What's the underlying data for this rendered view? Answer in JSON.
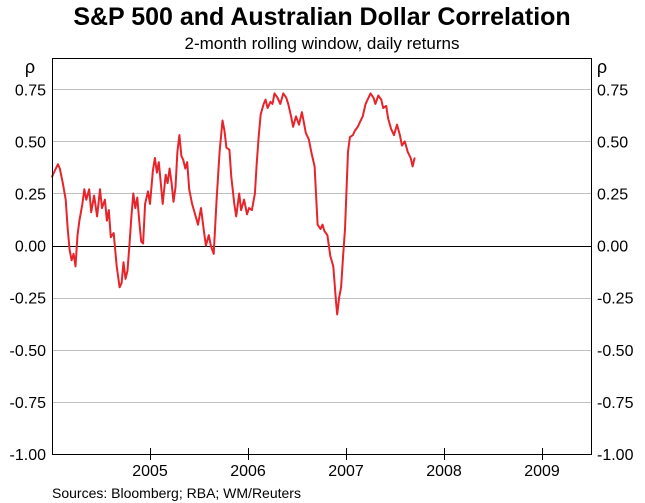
{
  "chart_data": {
    "type": "line",
    "title": "S&P 500 and Australian Dollar Correlation",
    "subtitle": "2-month rolling window, daily returns",
    "left_axis_unit": "ρ",
    "right_axis_unit": "ρ",
    "ylim": [
      -1.0,
      0.9
    ],
    "yticks": [
      0.75,
      0.5,
      0.25,
      0.0,
      -0.25,
      -0.5,
      -0.75,
      -1.0
    ],
    "ytick_labels": [
      "0.75",
      "0.50",
      "0.25",
      "0.00",
      "-0.25",
      "-0.50",
      "-0.75",
      "-1.00"
    ],
    "xlim": [
      2004.5,
      2010.0
    ],
    "x_categories": [
      "2005",
      "2006",
      "2007",
      "2008",
      "2009"
    ],
    "year_boundaries": [
      2005,
      2006,
      2007,
      2008,
      2009
    ],
    "zero_line": true,
    "grid": "horizontal",
    "line_color": "#e8242b",
    "source": "Sources: Bloomberg; RBA; WM/Reuters",
    "series": [
      {
        "values": [
          [
            2004.5,
            0.33
          ],
          [
            2004.53,
            0.36
          ],
          [
            2004.56,
            0.39
          ],
          [
            2004.58,
            0.37
          ],
          [
            2004.61,
            0.3
          ],
          [
            2004.64,
            0.22
          ],
          [
            2004.66,
            0.08
          ],
          [
            2004.68,
            -0.02
          ],
          [
            2004.7,
            -0.07
          ],
          [
            2004.72,
            -0.04
          ],
          [
            2004.74,
            -0.1
          ],
          [
            2004.76,
            0.05
          ],
          [
            2004.78,
            0.12
          ],
          [
            2004.81,
            0.2
          ],
          [
            2004.83,
            0.27
          ],
          [
            2004.85,
            0.22
          ],
          [
            2004.88,
            0.27
          ],
          [
            2004.9,
            0.16
          ],
          [
            2004.93,
            0.24
          ],
          [
            2004.96,
            0.14
          ],
          [
            2004.99,
            0.27
          ],
          [
            2005.01,
            0.18
          ],
          [
            2005.04,
            0.22
          ],
          [
            2005.06,
            0.12
          ],
          [
            2005.08,
            0.17
          ],
          [
            2005.1,
            0.04
          ],
          [
            2005.13,
            0.06
          ],
          [
            2005.16,
            -0.1
          ],
          [
            2005.19,
            -0.2
          ],
          [
            2005.21,
            -0.18
          ],
          [
            2005.23,
            -0.08
          ],
          [
            2005.25,
            -0.16
          ],
          [
            2005.27,
            -0.12
          ],
          [
            2005.29,
            0.0
          ],
          [
            2005.31,
            0.14
          ],
          [
            2005.33,
            0.25
          ],
          [
            2005.35,
            0.18
          ],
          [
            2005.37,
            0.23
          ],
          [
            2005.39,
            0.12
          ],
          [
            2005.41,
            0.02
          ],
          [
            2005.43,
            0.01
          ],
          [
            2005.45,
            0.2
          ],
          [
            2005.48,
            0.26
          ],
          [
            2005.5,
            0.2
          ],
          [
            2005.53,
            0.36
          ],
          [
            2005.55,
            0.42
          ],
          [
            2005.57,
            0.35
          ],
          [
            2005.59,
            0.4
          ],
          [
            2005.61,
            0.3
          ],
          [
            2005.63,
            0.2
          ],
          [
            2005.66,
            0.34
          ],
          [
            2005.68,
            0.3
          ],
          [
            2005.7,
            0.37
          ],
          [
            2005.72,
            0.3
          ],
          [
            2005.74,
            0.21
          ],
          [
            2005.76,
            0.28
          ],
          [
            2005.78,
            0.45
          ],
          [
            2005.8,
            0.53
          ],
          [
            2005.82,
            0.43
          ],
          [
            2005.84,
            0.41
          ],
          [
            2005.86,
            0.37
          ],
          [
            2005.88,
            0.4
          ],
          [
            2005.9,
            0.27
          ],
          [
            2005.93,
            0.2
          ],
          [
            2005.96,
            0.15
          ],
          [
            2005.99,
            0.1
          ],
          [
            2006.02,
            0.18
          ],
          [
            2006.05,
            0.07
          ],
          [
            2006.07,
            0.0
          ],
          [
            2006.1,
            0.05
          ],
          [
            2006.12,
            0.0
          ],
          [
            2006.15,
            -0.04
          ],
          [
            2006.18,
            0.22
          ],
          [
            2006.21,
            0.45
          ],
          [
            2006.24,
            0.6
          ],
          [
            2006.26,
            0.55
          ],
          [
            2006.28,
            0.47
          ],
          [
            2006.31,
            0.46
          ],
          [
            2006.33,
            0.33
          ],
          [
            2006.36,
            0.2
          ],
          [
            2006.38,
            0.14
          ],
          [
            2006.41,
            0.25
          ],
          [
            2006.43,
            0.17
          ],
          [
            2006.46,
            0.22
          ],
          [
            2006.49,
            0.15
          ],
          [
            2006.51,
            0.18
          ],
          [
            2006.54,
            0.17
          ],
          [
            2006.57,
            0.25
          ],
          [
            2006.59,
            0.4
          ],
          [
            2006.61,
            0.53
          ],
          [
            2006.63,
            0.63
          ],
          [
            2006.66,
            0.68
          ],
          [
            2006.68,
            0.7
          ],
          [
            2006.7,
            0.66
          ],
          [
            2006.73,
            0.69
          ],
          [
            2006.75,
            0.68
          ],
          [
            2006.77,
            0.73
          ],
          [
            2006.8,
            0.71
          ],
          [
            2006.83,
            0.68
          ],
          [
            2006.86,
            0.73
          ],
          [
            2006.89,
            0.71
          ],
          [
            2006.91,
            0.68
          ],
          [
            2006.94,
            0.62
          ],
          [
            2006.96,
            0.57
          ],
          [
            2006.99,
            0.62
          ],
          [
            2007.02,
            0.58
          ],
          [
            2007.05,
            0.64
          ],
          [
            2007.07,
            0.59
          ],
          [
            2007.09,
            0.54
          ],
          [
            2007.12,
            0.51
          ],
          [
            2007.15,
            0.44
          ],
          [
            2007.18,
            0.38
          ],
          [
            2007.21,
            0.1
          ],
          [
            2007.24,
            0.08
          ],
          [
            2007.26,
            0.1
          ],
          [
            2007.28,
            0.07
          ],
          [
            2007.31,
            0.05
          ],
          [
            2007.34,
            -0.05
          ],
          [
            2007.37,
            -0.1
          ],
          [
            2007.4,
            -0.28
          ],
          [
            2007.41,
            -0.33
          ],
          [
            2007.43,
            -0.25
          ],
          [
            2007.45,
            -0.2
          ],
          [
            2007.47,
            -0.05
          ],
          [
            2007.49,
            0.08
          ],
          [
            2007.52,
            0.45
          ],
          [
            2007.54,
            0.52
          ],
          [
            2007.57,
            0.53
          ],
          [
            2007.59,
            0.55
          ],
          [
            2007.62,
            0.57
          ],
          [
            2007.64,
            0.59
          ],
          [
            2007.67,
            0.62
          ],
          [
            2007.7,
            0.68
          ],
          [
            2007.72,
            0.7
          ],
          [
            2007.75,
            0.73
          ],
          [
            2007.78,
            0.71
          ],
          [
            2007.8,
            0.68
          ],
          [
            2007.83,
            0.72
          ],
          [
            2007.86,
            0.7
          ],
          [
            2007.88,
            0.66
          ],
          [
            2007.91,
            0.67
          ],
          [
            2007.93,
            0.61
          ],
          [
            2007.96,
            0.56
          ],
          [
            2007.99,
            0.53
          ],
          [
            2008.02,
            0.58
          ],
          [
            2008.05,
            0.53
          ],
          [
            2008.07,
            0.48
          ],
          [
            2008.1,
            0.5
          ],
          [
            2008.13,
            0.45
          ],
          [
            2008.16,
            0.42
          ],
          [
            2008.18,
            0.38
          ],
          [
            2008.2,
            0.42
          ]
        ]
      }
    ]
  }
}
